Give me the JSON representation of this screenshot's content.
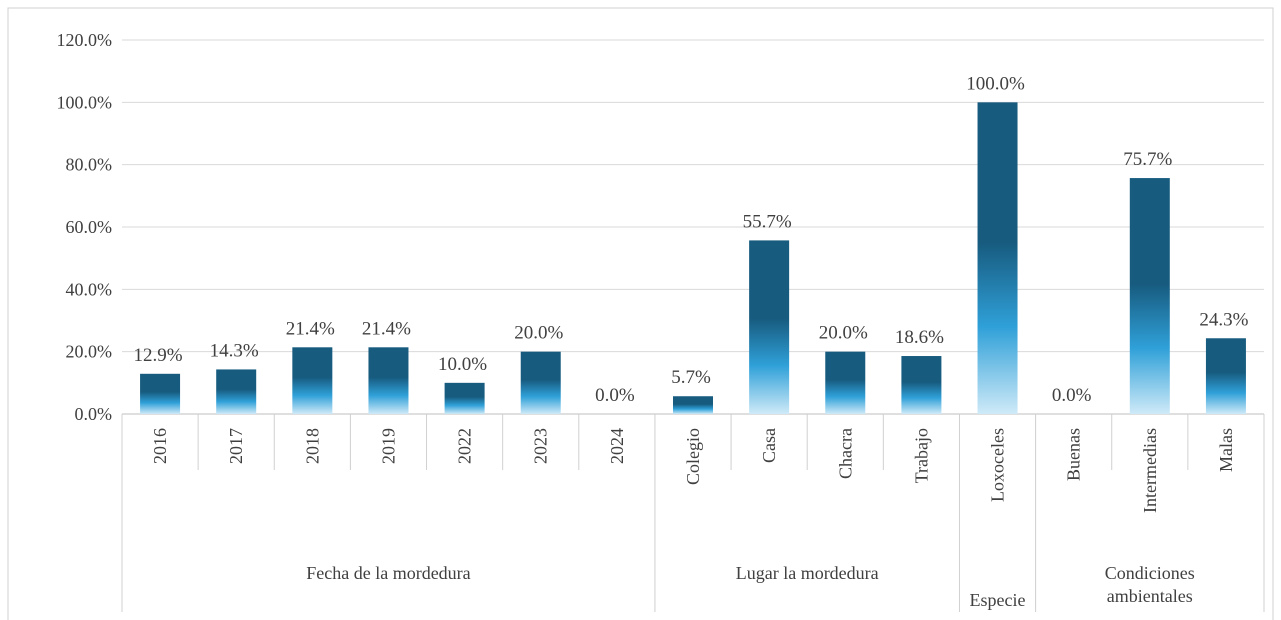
{
  "chart_data": {
    "type": "bar",
    "color": "#175b7f",
    "ylim": [
      0,
      120
    ],
    "yticks": [
      {
        "value": 0,
        "label": "0.0%"
      },
      {
        "value": 20,
        "label": "20.0%"
      },
      {
        "value": 40,
        "label": "40.0%"
      },
      {
        "value": 60,
        "label": "60.0%"
      },
      {
        "value": 80,
        "label": "80.0%"
      },
      {
        "value": 100,
        "label": "100.0%"
      },
      {
        "value": 120,
        "label": "120.0%"
      }
    ],
    "grid": true,
    "groups": [
      {
        "name": "Fecha de la mordedura",
        "categories": [
          "2016",
          "2017",
          "2018",
          "2019",
          "2022",
          "2023",
          "2024"
        ],
        "values": [
          12.9,
          14.3,
          21.4,
          21.4,
          10.0,
          20.0,
          0.0
        ],
        "value_labels": [
          "12.9%",
          "14.3%",
          "21.4%",
          "21.4%",
          "10.0%",
          "20.0%",
          "0.0%"
        ]
      },
      {
        "name": "Lugar  la mordedura",
        "categories": [
          "Colegio",
          "Casa",
          "Chacra",
          "Trabajo"
        ],
        "values": [
          5.7,
          55.7,
          20.0,
          18.6
        ],
        "value_labels": [
          "5.7%",
          "55.7%",
          "20.0%",
          "18.6%"
        ]
      },
      {
        "name": "Especie",
        "categories": [
          "Loxoceles"
        ],
        "values": [
          100.0
        ],
        "value_labels": [
          "100.0%"
        ]
      },
      {
        "name": "Condiciones ambientales",
        "categories": [
          "Buenas",
          "Intermedias",
          "Malas"
        ],
        "values": [
          0.0,
          75.7,
          24.3
        ],
        "value_labels": [
          "0.0%",
          "75.7%",
          "24.3%"
        ]
      }
    ]
  }
}
